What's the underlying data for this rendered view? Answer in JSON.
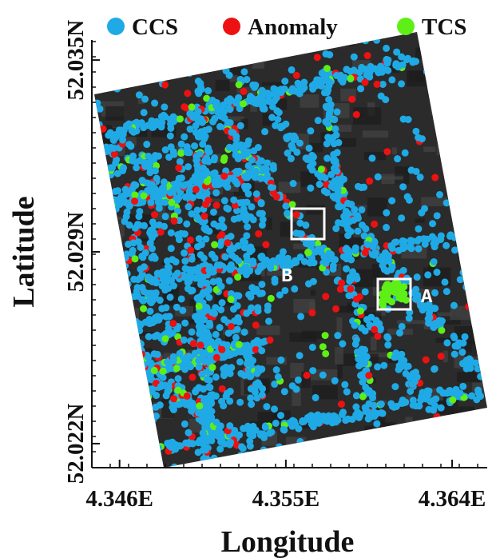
{
  "chart_data": {
    "type": "map",
    "x_label": "Longitude",
    "y_label": "Latitude",
    "xlim": [
      4.3445,
      4.3659
    ],
    "xticks": [
      {
        "value": 4.346,
        "label": "4.346E"
      },
      {
        "value": 4.355,
        "label": "4.355E"
      },
      {
        "value": 4.364,
        "label": "4.364E"
      }
    ],
    "ylim": [
      52.02161,
      52.03566
    ],
    "yticks": [
      {
        "value": 52.035,
        "label": "52.035N"
      },
      {
        "value": 52.0287,
        "label": "52.029N"
      },
      {
        "value": 52.0224,
        "label": "52.022N"
      }
    ],
    "series": [
      {
        "name": "CCS",
        "color": "#1faae6"
      },
      {
        "name": "Anomaly",
        "color": "#ee1111"
      },
      {
        "name": "TCS",
        "color": "#5ef016"
      }
    ],
    "annotations": [
      "A",
      "B"
    ]
  }
}
